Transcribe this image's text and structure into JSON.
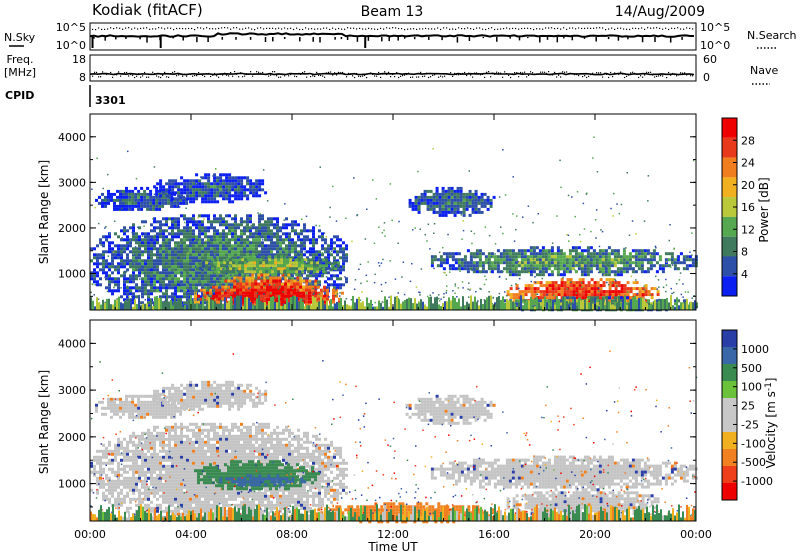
{
  "header": {
    "station": "Kodiak (fitACF)",
    "beam": "Beam 13",
    "date": "14/Aug/2009"
  },
  "top_panels": {
    "nsky_label": "N.Sky",
    "nsearch_label": "N.Search",
    "nsky_ticks": [
      "10^5",
      "10^0"
    ],
    "nsearch_ticks": [
      "10^5",
      "10^0"
    ],
    "freq_label": "Freq.",
    "freq_unit": "[MHz]",
    "freq_ticks": [
      "18",
      "8"
    ],
    "nave_label": "Nave",
    "nave_ticks": [
      "60",
      "0"
    ],
    "cpid_label": "CPID",
    "cpid_value": "3301"
  },
  "colors": {
    "power": [
      "#0a1ff0",
      "#2e4fa8",
      "#3f7a5e",
      "#55a84f",
      "#b9c93a",
      "#f0b020",
      "#f07d1e",
      "#e83a1a",
      "#ee0000"
    ],
    "velocity": [
      "#2a3ea8",
      "#3a67a8",
      "#3a8b52",
      "#6cc13b",
      "#c8c8c8",
      "#c8c8c8",
      "#f0b020",
      "#f08020",
      "#ee3e1a",
      "#ee0000"
    ],
    "gray": "#c4c4c4"
  },
  "chart_data": [
    {
      "type": "heatmap",
      "name": "power",
      "ylabel": "Slant Range [km]",
      "xlim": [
        0,
        24
      ],
      "ylim": [
        200,
        4500
      ],
      "yticks": [
        "4000",
        "3000",
        "2000",
        "1000"
      ],
      "colorbar": {
        "label": "Power [dB]",
        "ticks": [
          "28",
          "24",
          "20",
          "16",
          "12",
          "8",
          "4"
        ],
        "range": [
          0,
          30
        ]
      },
      "regions": [
        {
          "t": [
            0.0,
            10.2
          ],
          "r": [
            200,
            2300
          ],
          "level": 8
        },
        {
          "t": [
            0.2,
            3.8
          ],
          "r": [
            2400,
            2900
          ],
          "level": 6
        },
        {
          "t": [
            2.5,
            7.0
          ],
          "r": [
            2600,
            3200
          ],
          "level": 5
        },
        {
          "t": [
            4.2,
            9.8
          ],
          "r": [
            1000,
            1400
          ],
          "level": 14
        },
        {
          "t": [
            5.2,
            9.0
          ],
          "r": [
            500,
            1000
          ],
          "level": 27
        },
        {
          "t": [
            4.0,
            10.0
          ],
          "r": [
            250,
            800
          ],
          "level": 30
        },
        {
          "t": [
            12.5,
            16.0
          ],
          "r": [
            2300,
            2900
          ],
          "level": 7
        },
        {
          "t": [
            13.5,
            24.0
          ],
          "r": [
            1000,
            1600
          ],
          "level": 10
        },
        {
          "t": [
            16.5,
            22.5
          ],
          "r": [
            300,
            900
          ],
          "level": 28
        },
        {
          "t": [
            16.0,
            24.0
          ],
          "r": [
            200,
            500
          ],
          "level": 12
        }
      ]
    },
    {
      "type": "heatmap",
      "name": "velocity",
      "ylabel": "Slant Range [km]",
      "xlabel": "Time UT",
      "xlim": [
        0,
        24
      ],
      "ylim": [
        200,
        4500
      ],
      "xticks": [
        "00:00",
        "04:00",
        "08:00",
        "12:00",
        "16:00",
        "20:00",
        "00:00"
      ],
      "yticks": [
        "4000",
        "3000",
        "2000",
        "1000"
      ],
      "colorbar": {
        "label": "Velocity [m s^-1]",
        "ticks": [
          "1000",
          "500",
          "100",
          "25",
          "-25",
          "-100",
          "-500",
          "-1000"
        ]
      },
      "regions": [
        {
          "t": [
            0.0,
            10.2
          ],
          "r": [
            200,
            2300
          ],
          "v": 0
        },
        {
          "t": [
            0.2,
            3.8
          ],
          "r": [
            2400,
            2900
          ],
          "v": 0
        },
        {
          "t": [
            2.5,
            7.0
          ],
          "r": [
            2600,
            3200
          ],
          "v": 0
        },
        {
          "t": [
            4.0,
            9.0
          ],
          "r": [
            900,
            1500
          ],
          "v": 150
        },
        {
          "t": [
            5.0,
            8.5
          ],
          "r": [
            1000,
            1200
          ],
          "v": 400
        },
        {
          "t": [
            12.5,
            16.0
          ],
          "r": [
            2300,
            2900
          ],
          "v": 0
        },
        {
          "t": [
            13.5,
            24.0
          ],
          "r": [
            900,
            1600
          ],
          "v": 0
        },
        {
          "t": [
            16.5,
            22.5
          ],
          "r": [
            300,
            900
          ],
          "v": 0
        },
        {
          "t": [
            9.0,
            16.0
          ],
          "r": [
            200,
            600
          ],
          "v": -200
        }
      ]
    }
  ]
}
